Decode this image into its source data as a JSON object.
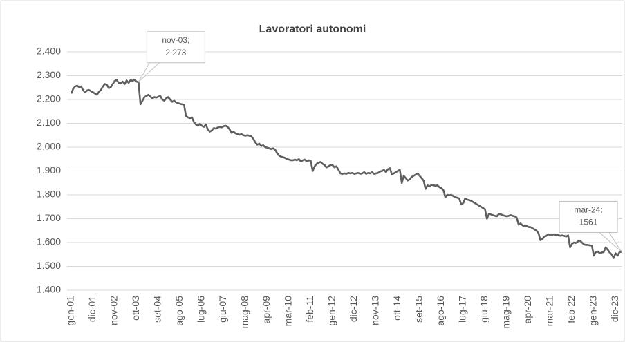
{
  "chart_data": {
    "type": "line",
    "title": "Lavoratori autonomi",
    "color": "#5f5f5f",
    "grid": true,
    "ylim": [
      1400,
      2400
    ],
    "yticks": [
      {
        "value": 1400,
        "label": "1.400"
      },
      {
        "value": 1500,
        "label": "1.500"
      },
      {
        "value": 1600,
        "label": "1.600"
      },
      {
        "value": 1700,
        "label": "1.700"
      },
      {
        "value": 1800,
        "label": "1.800"
      },
      {
        "value": 1900,
        "label": "1.900"
      },
      {
        "value": 2000,
        "label": "2.000"
      },
      {
        "value": 2100,
        "label": "2.100"
      },
      {
        "value": 2200,
        "label": "2.200"
      },
      {
        "value": 2300,
        "label": "2.300"
      },
      {
        "value": 2400,
        "label": "2.400"
      }
    ],
    "categories": [
      "gen-01",
      null,
      null,
      null,
      null,
      null,
      null,
      null,
      null,
      null,
      null,
      "dic-01",
      null,
      null,
      null,
      null,
      null,
      null,
      null,
      null,
      null,
      null,
      "nov-02",
      null,
      null,
      null,
      null,
      null,
      null,
      null,
      null,
      null,
      null,
      "ott-03",
      null,
      null,
      null,
      null,
      null,
      null,
      null,
      null,
      null,
      null,
      "set-04",
      null,
      null,
      null,
      null,
      null,
      null,
      null,
      null,
      null,
      null,
      "ago-05",
      null,
      null,
      null,
      null,
      null,
      null,
      null,
      null,
      null,
      null,
      "lug-06",
      null,
      null,
      null,
      null,
      null,
      null,
      null,
      null,
      null,
      null,
      "giu-07",
      null,
      null,
      null,
      null,
      null,
      null,
      null,
      null,
      null,
      null,
      "mag-08",
      null,
      null,
      null,
      null,
      null,
      null,
      null,
      null,
      null,
      null,
      "apr-09",
      null,
      null,
      null,
      null,
      null,
      null,
      null,
      null,
      null,
      null,
      "mar-10",
      null,
      null,
      null,
      null,
      null,
      null,
      null,
      null,
      null,
      null,
      "feb-11",
      null,
      null,
      null,
      null,
      null,
      null,
      null,
      null,
      null,
      null,
      "gen-12",
      null,
      null,
      null,
      null,
      null,
      null,
      null,
      null,
      null,
      null,
      "dic-12",
      null,
      null,
      null,
      null,
      null,
      null,
      null,
      null,
      null,
      null,
      "nov-13",
      null,
      null,
      null,
      null,
      null,
      null,
      null,
      null,
      null,
      null,
      "ott-14",
      null,
      null,
      null,
      null,
      null,
      null,
      null,
      null,
      null,
      null,
      "set-15",
      null,
      null,
      null,
      null,
      null,
      null,
      null,
      null,
      null,
      null,
      "ago-16",
      null,
      null,
      null,
      null,
      null,
      null,
      null,
      null,
      null,
      null,
      "lug-17",
      null,
      null,
      null,
      null,
      null,
      null,
      null,
      null,
      null,
      null,
      "giu-18",
      null,
      null,
      null,
      null,
      null,
      null,
      null,
      null,
      null,
      null,
      "mag-19",
      null,
      null,
      null,
      null,
      null,
      null,
      null,
      null,
      null,
      null,
      "apr-20",
      null,
      null,
      null,
      null,
      null,
      null,
      null,
      null,
      null,
      null,
      "mar-21",
      null,
      null,
      null,
      null,
      null,
      null,
      null,
      null,
      null,
      null,
      "feb-22",
      null,
      null,
      null,
      null,
      null,
      null,
      null,
      null,
      null,
      null,
      "gen-23",
      null,
      null,
      null,
      null,
      null,
      null,
      null,
      null,
      null,
      null,
      "dic-23",
      null,
      null,
      null
    ],
    "values": [
      2225,
      2245,
      2255,
      2258,
      2252,
      2255,
      2240,
      2230,
      2238,
      2240,
      2235,
      2230,
      2225,
      2220,
      2232,
      2240,
      2255,
      2265,
      2262,
      2248,
      2252,
      2265,
      2278,
      2282,
      2270,
      2268,
      2275,
      2265,
      2280,
      2270,
      2282,
      2278,
      2283,
      2275,
      2273,
      2180,
      2195,
      2210,
      2215,
      2220,
      2212,
      2205,
      2210,
      2208,
      2212,
      2215,
      2200,
      2195,
      2205,
      2210,
      2200,
      2190,
      2195,
      2188,
      2185,
      2182,
      2180,
      2178,
      2130,
      2125,
      2122,
      2125,
      2105,
      2095,
      2090,
      2098,
      2090,
      2085,
      2095,
      2075,
      2065,
      2070,
      2080,
      2078,
      2082,
      2085,
      2083,
      2088,
      2090,
      2085,
      2075,
      2060,
      2065,
      2058,
      2055,
      2052,
      2055,
      2050,
      2048,
      2050,
      2048,
      2045,
      2035,
      2020,
      2010,
      2015,
      2005,
      2008,
      2000,
      1998,
      1995,
      1992,
      1995,
      1990,
      1975,
      1965,
      1960,
      1958,
      1955,
      1950,
      1948,
      1945,
      1945,
      1948,
      1945,
      1950,
      1940,
      1945,
      1948,
      1940,
      1945,
      1942,
      1900,
      1920,
      1930,
      1935,
      1938,
      1930,
      1925,
      1915,
      1920,
      1925,
      1925,
      1915,
      1920,
      1905,
      1890,
      1888,
      1890,
      1888,
      1892,
      1890,
      1892,
      1888,
      1890,
      1892,
      1888,
      1890,
      1895,
      1888,
      1892,
      1890,
      1895,
      1888,
      1890,
      1892,
      1898,
      1900,
      1905,
      1895,
      1908,
      1912,
      1885,
      1890,
      1895,
      1900,
      1905,
      1850,
      1880,
      1870,
      1860,
      1865,
      1875,
      1880,
      1885,
      1890,
      1880,
      1870,
      1860,
      1825,
      1840,
      1835,
      1842,
      1840,
      1838,
      1840,
      1832,
      1828,
      1820,
      1790,
      1800,
      1798,
      1800,
      1795,
      1790,
      1788,
      1785,
      1760,
      1765,
      1785,
      1780,
      1778,
      1775,
      1770,
      1765,
      1760,
      1755,
      1750,
      1745,
      1740,
      1700,
      1720,
      1718,
      1715,
      1712,
      1710,
      1720,
      1718,
      1715,
      1712,
      1710,
      1712,
      1715,
      1712,
      1710,
      1705,
      1675,
      1680,
      1672,
      1668,
      1670,
      1665,
      1665,
      1660,
      1655,
      1650,
      1640,
      1610,
      1615,
      1625,
      1628,
      1635,
      1630,
      1632,
      1635,
      1630,
      1632,
      1628,
      1630,
      1628,
      1625,
      1630,
      1580,
      1595,
      1600,
      1598,
      1605,
      1608,
      1600,
      1592,
      1590,
      1590,
      1588,
      1587,
      1545,
      1560,
      1562,
      1555,
      1558,
      1560,
      1580,
      1570,
      1558,
      1550,
      1535,
      1555,
      1545,
      1560,
      1561
    ],
    "annotations": [
      {
        "index": 34,
        "lines": [
          "nov-03;",
          "2.273"
        ]
      },
      {
        "index": 278,
        "lines": [
          "mar-24;",
          "1561"
        ]
      }
    ]
  }
}
